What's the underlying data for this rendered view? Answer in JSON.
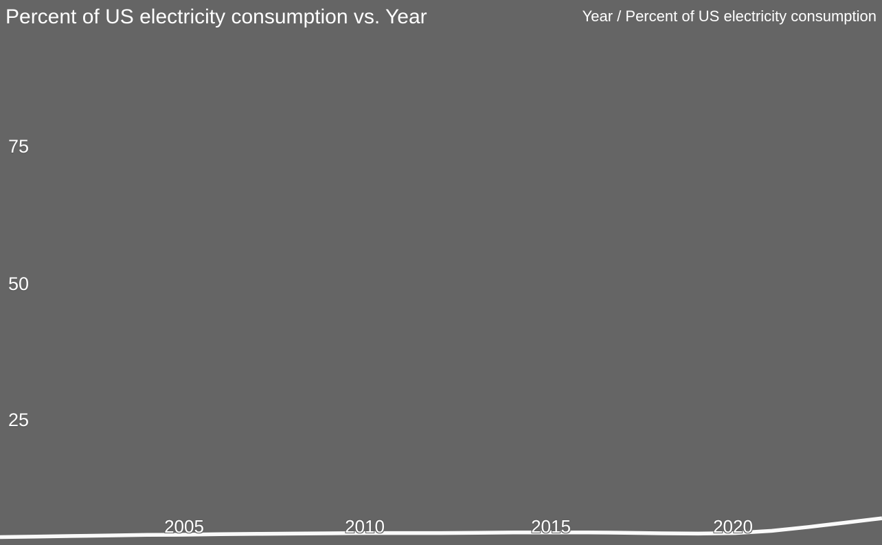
{
  "title": "Percent of US electricity consumption vs. Year",
  "legend": "Year / Percent of US electricity consumption",
  "colors": {
    "background": "#656565",
    "line": "#fafafa",
    "text": "#ffffff",
    "tick_outline": "#5d5d5d"
  },
  "y_axis": {
    "ticks": [
      "75",
      "50",
      "25"
    ]
  },
  "x_axis": {
    "ticks": [
      "2005",
      "2010",
      "2015",
      "2020"
    ]
  },
  "chart_data": {
    "type": "line",
    "title": "Percent of US electricity consumption vs. Year",
    "xlabel": "Year",
    "ylabel": "Percent of US electricity consumption",
    "x": [
      2000,
      2001,
      2002,
      2003,
      2004,
      2005,
      2006,
      2007,
      2008,
      2009,
      2010,
      2011,
      2012,
      2013,
      2014,
      2015,
      2016,
      2017,
      2018,
      2019,
      2020,
      2021,
      2022,
      2023,
      2024
    ],
    "series": [
      {
        "name": "Percent of US electricity consumption",
        "values": [
          3.55,
          3.65,
          3.75,
          3.85,
          3.95,
          4.0,
          4.1,
          4.15,
          4.2,
          4.25,
          4.3,
          4.3,
          4.3,
          4.35,
          4.4,
          4.4,
          4.4,
          4.35,
          4.25,
          4.2,
          4.3,
          4.7,
          5.4,
          6.2,
          7.0
        ]
      }
    ],
    "xlim": [
      2000,
      2024
    ],
    "ylim": [
      0,
      100
    ],
    "y_tick_values": [
      25,
      50,
      75
    ],
    "x_tick_values": [
      2005,
      2010,
      2015,
      2020
    ],
    "grid": false,
    "legend_position": "top-right",
    "note": "bottom of plot area cropped below y=2"
  }
}
